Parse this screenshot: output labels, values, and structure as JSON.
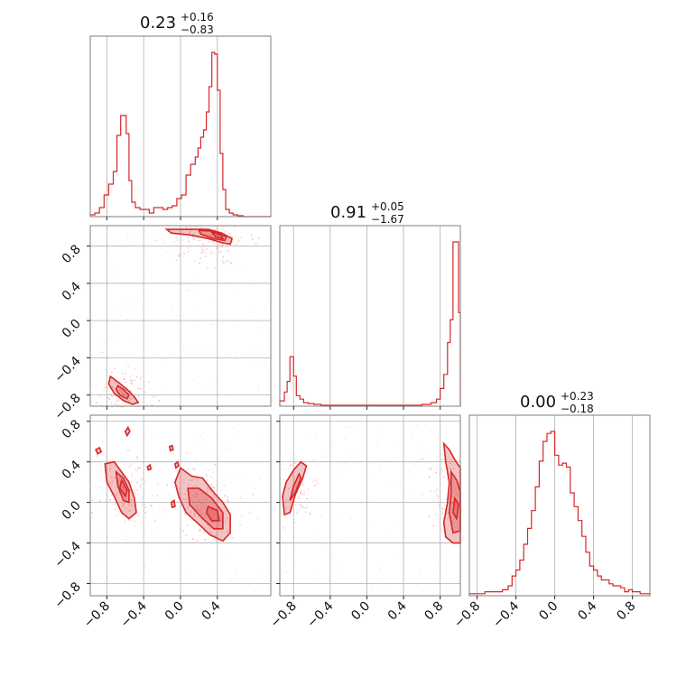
{
  "chart_data": {
    "type": "corner",
    "color": "#d62728",
    "parameters": [
      {
        "median": "0.23",
        "plus": "+0.16",
        "minus": "−0.83"
      },
      {
        "median": "0.91",
        "plus": "+0.05",
        "minus": "−1.67"
      },
      {
        "median": "0.00",
        "plus": "+0.23",
        "minus": "−0.18"
      }
    ],
    "axes": {
      "xlim": [
        [
          -0.98,
          0.98
        ],
        [
          -0.95,
          1.02
        ],
        [
          -0.88,
          0.98
        ]
      ],
      "ylim_2d": {
        "1": [
          -0.92,
          1.02
        ],
        "2": [
          -0.92,
          0.86
        ]
      }
    },
    "tick_values": {
      "0": [
        -0.8,
        -0.4,
        0.0,
        0.4
      ],
      "1": [
        -0.8,
        -0.4,
        0.0,
        0.4,
        0.8
      ],
      "2": [
        -0.8,
        -0.4,
        0.0,
        0.4,
        0.8
      ]
    },
    "tick_labels": {
      "0": [
        "−0.8",
        "−0.4",
        "0.0",
        "0.4"
      ],
      "1": [
        "−0.8",
        "−0.4",
        "0.0",
        "0.4",
        "0.8"
      ],
      "2": [
        "−0.8",
        "−0.4",
        "0.0",
        "0.4",
        "0.8"
      ]
    },
    "histograms": [
      {
        "param": 0,
        "edges": [
          -0.98,
          -0.93,
          -0.88,
          -0.83,
          -0.78,
          -0.73,
          -0.69,
          -0.65,
          -0.62,
          -0.59,
          -0.56,
          -0.53,
          -0.49,
          -0.44,
          -0.39,
          -0.34,
          -0.29,
          -0.24,
          -0.19,
          -0.14,
          -0.09,
          -0.04,
          0.01,
          0.06,
          0.11,
          0.16,
          0.19,
          0.22,
          0.25,
          0.28,
          0.31,
          0.34,
          0.37,
          0.4,
          0.43,
          0.46,
          0.49,
          0.53,
          0.57,
          0.62,
          0.68,
          0.98
        ],
        "counts": [
          0.01,
          0.02,
          0.05,
          0.12,
          0.18,
          0.25,
          0.45,
          0.56,
          0.56,
          0.46,
          0.2,
          0.08,
          0.05,
          0.04,
          0.04,
          0.02,
          0.05,
          0.05,
          0.04,
          0.05,
          0.06,
          0.1,
          0.12,
          0.23,
          0.29,
          0.33,
          0.38,
          0.44,
          0.48,
          0.58,
          0.72,
          0.91,
          0.9,
          0.7,
          0.35,
          0.15,
          0.04,
          0.02,
          0.01,
          0.005,
          0.0
        ]
      },
      {
        "param": 1,
        "edges": [
          -0.95,
          -0.9,
          -0.87,
          -0.84,
          -0.8,
          -0.77,
          -0.73,
          -0.69,
          -0.64,
          -0.58,
          -0.5,
          -0.4,
          -0.2,
          0.0,
          0.3,
          0.6,
          0.7,
          0.76,
          0.8,
          0.84,
          0.88,
          0.91,
          0.94,
          0.97,
          1.0,
          1.02
        ],
        "counts": [
          0.03,
          0.08,
          0.14,
          0.28,
          0.17,
          0.06,
          0.04,
          0.02,
          0.015,
          0.01,
          0.005,
          0.005,
          0.005,
          0.005,
          0.005,
          0.01,
          0.02,
          0.04,
          0.1,
          0.18,
          0.36,
          0.49,
          0.93,
          0.93,
          0.53
        ]
      },
      {
        "param": 2,
        "edges": [
          -0.88,
          -0.81,
          -0.72,
          -0.66,
          -0.6,
          -0.54,
          -0.48,
          -0.44,
          -0.4,
          -0.36,
          -0.32,
          -0.28,
          -0.24,
          -0.2,
          -0.16,
          -0.12,
          -0.08,
          -0.04,
          0.0,
          0.04,
          0.08,
          0.12,
          0.16,
          0.2,
          0.24,
          0.28,
          0.32,
          0.36,
          0.4,
          0.44,
          0.48,
          0.52,
          0.56,
          0.6,
          0.64,
          0.68,
          0.72,
          0.76,
          0.8,
          0.84,
          0.88,
          0.98
        ],
        "counts": [
          0.01,
          0.01,
          0.02,
          0.02,
          0.02,
          0.03,
          0.05,
          0.1,
          0.13,
          0.18,
          0.26,
          0.34,
          0.43,
          0.55,
          0.68,
          0.78,
          0.82,
          0.83,
          0.71,
          0.66,
          0.67,
          0.65,
          0.52,
          0.45,
          0.38,
          0.3,
          0.22,
          0.15,
          0.13,
          0.1,
          0.08,
          0.08,
          0.06,
          0.05,
          0.05,
          0.04,
          0.02,
          0.03,
          0.02,
          0.02,
          0.01
        ]
      }
    ],
    "panels_2d": [
      {
        "x_param": 0,
        "y_param": 1,
        "density": [
          [
            -0.63,
            -0.75,
            0.9
          ],
          [
            -0.55,
            -0.84,
            0.7
          ],
          [
            0.3,
            0.92,
            1.0
          ],
          [
            0.12,
            0.94,
            0.6
          ],
          [
            0.48,
            0.88,
            0.8
          ]
        ],
        "contours": [
          [
            [
              -0.76,
              -0.6
            ],
            [
              -0.68,
              -0.66
            ],
            [
              -0.58,
              -0.74
            ],
            [
              -0.5,
              -0.82
            ],
            [
              -0.46,
              -0.88
            ],
            [
              -0.52,
              -0.9
            ],
            [
              -0.62,
              -0.86
            ],
            [
              -0.72,
              -0.78
            ],
            [
              -0.78,
              -0.68
            ]
          ],
          [
            [
              -0.68,
              -0.7
            ],
            [
              -0.62,
              -0.74
            ],
            [
              -0.56,
              -0.8
            ],
            [
              -0.58,
              -0.84
            ],
            [
              -0.66,
              -0.8
            ],
            [
              -0.7,
              -0.74
            ]
          ],
          [
            [
              -0.15,
              0.98
            ],
            [
              0.1,
              0.98
            ],
            [
              0.3,
              0.98
            ],
            [
              0.45,
              0.94
            ],
            [
              0.56,
              0.88
            ],
            [
              0.54,
              0.82
            ],
            [
              0.44,
              0.84
            ],
            [
              0.3,
              0.88
            ],
            [
              0.1,
              0.92
            ],
            [
              -0.1,
              0.94
            ]
          ],
          [
            [
              0.2,
              0.97
            ],
            [
              0.36,
              0.96
            ],
            [
              0.5,
              0.9
            ],
            [
              0.48,
              0.86
            ],
            [
              0.36,
              0.88
            ],
            [
              0.22,
              0.93
            ]
          ],
          [
            [
              0.34,
              0.95
            ],
            [
              0.44,
              0.92
            ],
            [
              0.46,
              0.88
            ],
            [
              0.38,
              0.9
            ]
          ]
        ]
      },
      {
        "x_param": 0,
        "y_param": 2,
        "density": [
          [
            -0.64,
            0.2,
            0.8
          ],
          [
            -0.58,
            0.05,
            0.7
          ],
          [
            0.36,
            -0.1,
            1.0
          ],
          [
            0.2,
            0.0,
            0.7
          ],
          [
            0.1,
            0.15,
            0.5
          ]
        ],
        "contours": [
          [
            [
              -0.82,
              0.38
            ],
            [
              -0.72,
              0.4
            ],
            [
              -0.64,
              0.3
            ],
            [
              -0.56,
              0.2
            ],
            [
              -0.5,
              0.04
            ],
            [
              -0.48,
              -0.1
            ],
            [
              -0.56,
              -0.16
            ],
            [
              -0.64,
              -0.1
            ],
            [
              -0.72,
              0.06
            ],
            [
              -0.8,
              0.2
            ]
          ],
          [
            [
              -0.7,
              0.3
            ],
            [
              -0.62,
              0.24
            ],
            [
              -0.56,
              0.12
            ],
            [
              -0.56,
              0.0
            ],
            [
              -0.62,
              0.02
            ],
            [
              -0.68,
              0.16
            ]
          ],
          [
            [
              -0.64,
              0.22
            ],
            [
              -0.58,
              0.12
            ],
            [
              -0.6,
              0.06
            ],
            [
              -0.66,
              0.14
            ]
          ],
          [
            [
              0.0,
              0.34
            ],
            [
              0.12,
              0.26
            ],
            [
              0.24,
              0.24
            ],
            [
              0.36,
              0.1
            ],
            [
              0.46,
              0.0
            ],
            [
              0.54,
              -0.12
            ],
            [
              0.54,
              -0.3
            ],
            [
              0.46,
              -0.38
            ],
            [
              0.32,
              -0.32
            ],
            [
              0.18,
              -0.2
            ],
            [
              0.06,
              -0.1
            ],
            [
              -0.02,
              0.06
            ],
            [
              -0.06,
              0.2
            ]
          ],
          [
            [
              0.08,
              0.14
            ],
            [
              0.2,
              0.14
            ],
            [
              0.34,
              0.04
            ],
            [
              0.46,
              -0.1
            ],
            [
              0.46,
              -0.26
            ],
            [
              0.36,
              -0.26
            ],
            [
              0.22,
              -0.14
            ],
            [
              0.1,
              -0.02
            ]
          ],
          [
            [
              0.3,
              -0.04
            ],
            [
              0.4,
              -0.08
            ],
            [
              0.42,
              -0.18
            ],
            [
              0.34,
              -0.18
            ],
            [
              0.28,
              -0.1
            ]
          ],
          [
            [
              -0.92,
              0.52
            ],
            [
              -0.88,
              0.54
            ],
            [
              -0.86,
              0.5
            ],
            [
              -0.9,
              0.48
            ]
          ],
          [
            [
              -0.6,
              0.7
            ],
            [
              -0.57,
              0.74
            ],
            [
              -0.55,
              0.7
            ],
            [
              -0.58,
              0.66
            ]
          ],
          [
            [
              -0.12,
              0.55
            ],
            [
              -0.09,
              0.56
            ],
            [
              -0.08,
              0.52
            ],
            [
              -0.11,
              0.51
            ]
          ],
          [
            [
              -0.06,
              0.38
            ],
            [
              -0.03,
              0.4
            ],
            [
              -0.02,
              0.36
            ],
            [
              -0.05,
              0.34
            ]
          ],
          [
            [
              -0.36,
              0.35
            ],
            [
              -0.33,
              0.37
            ],
            [
              -0.32,
              0.33
            ],
            [
              -0.35,
              0.32
            ]
          ],
          [
            [
              -0.1,
              0.0
            ],
            [
              -0.07,
              0.02
            ],
            [
              -0.06,
              -0.04
            ],
            [
              -0.09,
              -0.05
            ]
          ]
        ]
      },
      {
        "x_param": 1,
        "y_param": 2,
        "density": [
          [
            -0.82,
            0.1,
            0.9
          ],
          [
            0.96,
            -0.05,
            1.0
          ],
          [
            0.92,
            0.25,
            0.6
          ]
        ],
        "contours": [
          [
            [
              -0.9,
              -0.12
            ],
            [
              -0.92,
              0.06
            ],
            [
              -0.88,
              0.2
            ],
            [
              -0.8,
              0.32
            ],
            [
              -0.72,
              0.4
            ],
            [
              -0.66,
              0.36
            ],
            [
              -0.7,
              0.24
            ],
            [
              -0.78,
              0.08
            ],
            [
              -0.84,
              -0.1
            ]
          ],
          [
            [
              -0.84,
              0.02
            ],
            [
              -0.8,
              0.16
            ],
            [
              -0.74,
              0.28
            ],
            [
              -0.72,
              0.24
            ],
            [
              -0.78,
              0.1
            ]
          ],
          [
            [
              0.84,
              0.58
            ],
            [
              0.9,
              0.52
            ],
            [
              0.96,
              0.42
            ],
            [
              1.02,
              0.34
            ],
            [
              1.02,
              -0.4
            ],
            [
              0.94,
              -0.4
            ],
            [
              0.86,
              -0.34
            ],
            [
              0.84,
              -0.2
            ],
            [
              0.88,
              0.0
            ],
            [
              0.9,
              0.2
            ],
            [
              0.86,
              0.4
            ]
          ],
          [
            [
              0.92,
              0.3
            ],
            [
              0.98,
              0.22
            ],
            [
              1.02,
              0.1
            ],
            [
              1.02,
              -0.28
            ],
            [
              0.94,
              -0.3
            ],
            [
              0.9,
              -0.1
            ],
            [
              0.92,
              0.1
            ]
          ],
          [
            [
              0.96,
              0.04
            ],
            [
              1.0,
              -0.02
            ],
            [
              0.98,
              -0.16
            ],
            [
              0.94,
              -0.1
            ]
          ]
        ]
      }
    ]
  }
}
